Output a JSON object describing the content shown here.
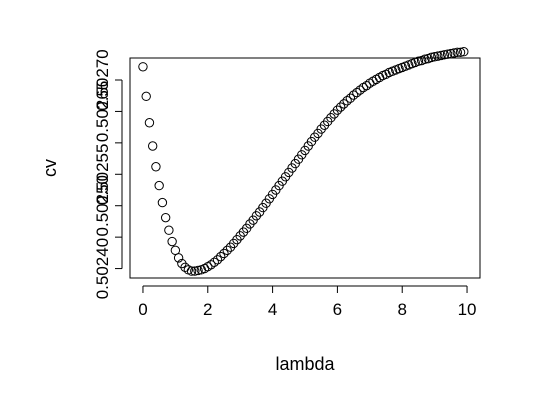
{
  "chart_data": {
    "type": "scatter",
    "title": "",
    "xlabel": "lambda",
    "ylabel": "cv",
    "xlim": [
      -0.4,
      10.4
    ],
    "ylim": [
      0.502385,
      0.502735
    ],
    "x_ticks": [
      0,
      2,
      4,
      6,
      8,
      10
    ],
    "x_tick_labels": [
      "0",
      "2",
      "4",
      "6",
      "8",
      "10"
    ],
    "y_ticks": [
      0.5024,
      0.50245,
      0.5025,
      0.50255,
      0.5026,
      0.50265,
      0.5027
    ],
    "y_tick_labels": [
      "0.50240",
      "",
      "0.50250",
      "0.50255",
      "",
      "0.50265",
      "0.50270"
    ],
    "grid": false,
    "legend": "none",
    "marker": "open-circle",
    "series": [
      {
        "x": [
          0.0,
          0.1,
          0.2,
          0.3,
          0.4,
          0.5,
          0.6,
          0.7,
          0.8,
          0.9,
          1.0,
          1.1,
          1.2,
          1.3,
          1.4,
          1.5,
          1.6,
          1.7,
          1.8,
          1.9,
          2.0,
          2.1,
          2.2,
          2.3,
          2.4,
          2.5,
          2.6,
          2.7,
          2.8,
          2.9,
          3.0,
          3.1,
          3.2,
          3.3,
          3.4,
          3.5,
          3.6,
          3.7,
          3.8,
          3.9,
          4.0,
          4.1,
          4.2,
          4.3,
          4.4,
          4.5,
          4.6,
          4.7,
          4.8,
          4.9,
          5.0,
          5.1,
          5.2,
          5.3,
          5.4,
          5.5,
          5.6,
          5.7,
          5.8,
          5.9,
          6.0,
          6.1,
          6.2,
          6.3,
          6.4,
          6.5,
          6.6,
          6.7,
          6.8,
          6.9,
          7.0,
          7.1,
          7.2,
          7.3,
          7.4,
          7.5,
          7.6,
          7.7,
          7.8,
          7.9,
          8.0,
          8.1,
          8.2,
          8.3,
          8.4,
          8.5,
          8.6,
          8.7,
          8.8,
          8.9,
          9.0,
          9.1,
          9.2,
          9.3,
          9.4,
          9.5,
          9.6,
          9.7,
          9.8,
          9.9
        ],
        "y": [
          0.502721,
          0.502674,
          0.502632,
          0.502595,
          0.502562,
          0.502532,
          0.502505,
          0.502481,
          0.502461,
          0.502443,
          0.502429,
          0.502417,
          0.502408,
          0.502402,
          0.502398,
          0.502396,
          0.502396,
          0.502397,
          0.502398,
          0.5024,
          0.502403,
          0.502406,
          0.50241,
          0.502414,
          0.502419,
          0.502424,
          0.502429,
          0.502434,
          0.50244,
          0.502446,
          0.502452,
          0.502458,
          0.502464,
          0.502471,
          0.502477,
          0.502484,
          0.50249,
          0.502497,
          0.502504,
          0.502511,
          0.502518,
          0.502525,
          0.502532,
          0.502539,
          0.502546,
          0.502553,
          0.50256,
          0.502567,
          0.502574,
          0.502581,
          0.502588,
          0.502595,
          0.502602,
          0.502609,
          0.502615,
          0.502622,
          0.502628,
          0.502634,
          0.50264,
          0.502646,
          0.502652,
          0.502657,
          0.502662,
          0.502667,
          0.502671,
          0.502676,
          0.50268,
          0.502684,
          0.502688,
          0.502691,
          0.502695,
          0.502698,
          0.502701,
          0.502704,
          0.502707,
          0.502709,
          0.502712,
          0.502714,
          0.502716,
          0.502718,
          0.50272,
          0.502722,
          0.502724,
          0.502726,
          0.502728,
          0.50273,
          0.502731,
          0.502733,
          0.502734,
          0.502736,
          0.502737,
          0.502738,
          0.502739,
          0.50274,
          0.502741,
          0.502742,
          0.502743,
          0.502744,
          0.502744,
          0.502745
        ]
      }
    ]
  }
}
